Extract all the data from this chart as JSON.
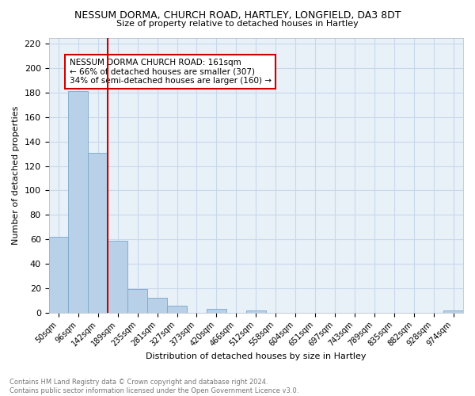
{
  "title": "NESSUM DORMA, CHURCH ROAD, HARTLEY, LONGFIELD, DA3 8DT",
  "subtitle": "Size of property relative to detached houses in Hartley",
  "xlabel": "Distribution of detached houses by size in Hartley",
  "ylabel": "Number of detached properties",
  "footer": "Contains HM Land Registry data © Crown copyright and database right 2024.\nContains public sector information licensed under the Open Government Licence v3.0.",
  "bar_labels": [
    "50sqm",
    "96sqm",
    "142sqm",
    "189sqm",
    "235sqm",
    "281sqm",
    "327sqm",
    "373sqm",
    "420sqm",
    "466sqm",
    "512sqm",
    "558sqm",
    "604sqm",
    "651sqm",
    "697sqm",
    "743sqm",
    "789sqm",
    "835sqm",
    "882sqm",
    "928sqm",
    "974sqm"
  ],
  "bar_values": [
    62,
    181,
    131,
    59,
    19,
    12,
    6,
    0,
    3,
    0,
    2,
    0,
    0,
    0,
    0,
    0,
    0,
    0,
    0,
    0,
    2
  ],
  "bar_color": "#b8d0e8",
  "bar_edge_color": "#7aa8cc",
  "vline_color": "#cc0000",
  "annotation_text": "NESSUM DORMA CHURCH ROAD: 161sqm\n← 66% of detached houses are smaller (307)\n34% of semi-detached houses are larger (160) →",
  "annotation_box_color": "#cc0000",
  "ylim": [
    0,
    225
  ],
  "yticks": [
    0,
    20,
    40,
    60,
    80,
    100,
    120,
    140,
    160,
    180,
    200,
    220
  ],
  "grid_color": "#c8d8ec",
  "background_color": "#e8f0f8"
}
